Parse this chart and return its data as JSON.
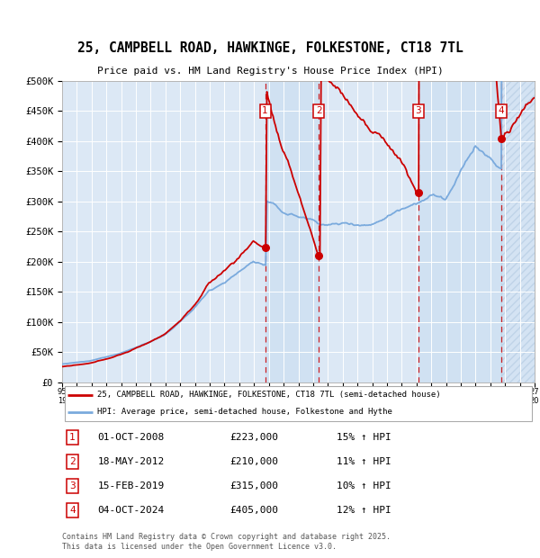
{
  "title": "25, CAMPBELL ROAD, HAWKINGE, FOLKESTONE, CT18 7TL",
  "subtitle": "Price paid vs. HM Land Registry's House Price Index (HPI)",
  "xlim_start": 1995.0,
  "xlim_end": 2027.0,
  "ylim_min": 0,
  "ylim_max": 500000,
  "yticks": [
    0,
    50000,
    100000,
    150000,
    200000,
    250000,
    300000,
    350000,
    400000,
    450000,
    500000
  ],
  "ytick_labels": [
    "£0",
    "£50K",
    "£100K",
    "£150K",
    "£200K",
    "£250K",
    "£300K",
    "£350K",
    "£400K",
    "£450K",
    "£500K"
  ],
  "sale_dates": [
    2008.75,
    2012.38,
    2019.12,
    2024.75
  ],
  "sale_prices": [
    223000,
    210000,
    315000,
    405000
  ],
  "sale_labels": [
    "1",
    "2",
    "3",
    "4"
  ],
  "transaction_details": [
    {
      "label": "1",
      "date": "01-OCT-2008",
      "price": "£223,000",
      "hpi": "15% ↑ HPI"
    },
    {
      "label": "2",
      "date": "18-MAY-2012",
      "price": "£210,000",
      "hpi": "11% ↑ HPI"
    },
    {
      "label": "3",
      "date": "15-FEB-2019",
      "price": "£315,000",
      "hpi": "10% ↑ HPI"
    },
    {
      "label": "4",
      "date": "04-OCT-2024",
      "price": "£405,000",
      "hpi": "12% ↑ HPI"
    }
  ],
  "legend_line1": "25, CAMPBELL ROAD, HAWKINGE, FOLKESTONE, CT18 7TL (semi-detached house)",
  "legend_line2": "HPI: Average price, semi-detached house, Folkestone and Hythe",
  "line_color_red": "#cc0000",
  "line_color_blue": "#7aaadd",
  "bg_color": "#dce8f5",
  "footer": "Contains HM Land Registry data © Crown copyright and database right 2025.\nThis data is licensed under the Open Government Licence v3.0."
}
